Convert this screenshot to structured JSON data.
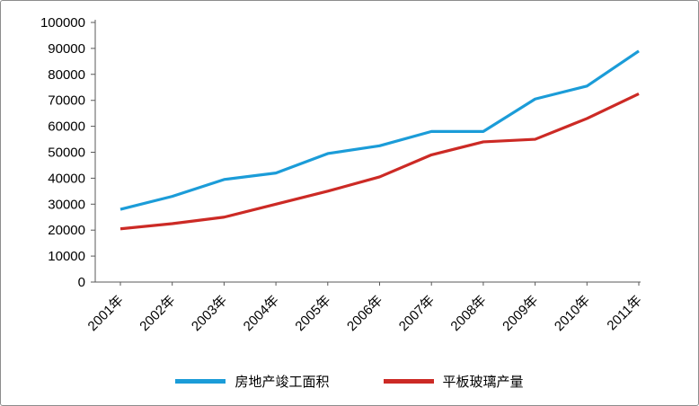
{
  "chart_data": {
    "type": "line",
    "categories": [
      "2001年",
      "2002年",
      "2003年",
      "2004年",
      "2005年",
      "2006年",
      "2007年",
      "2008年",
      "2009年",
      "2010年",
      "2011年"
    ],
    "series": [
      {
        "name": "房地产竣工面积",
        "color": "#1b9cd8",
        "values": [
          28000,
          33000,
          39500,
          42000,
          49500,
          52500,
          58000,
          58000,
          70500,
          75500,
          89000
        ]
      },
      {
        "name": "平板玻璃产量",
        "color": "#cc2a25",
        "values": [
          20500,
          22500,
          25000,
          30000,
          35000,
          40500,
          49000,
          54000,
          55000,
          63000,
          72500
        ]
      }
    ],
    "ylim": [
      0,
      100000
    ],
    "ytick_step": 10000,
    "yticks": [
      "0",
      "10000",
      "20000",
      "30000",
      "40000",
      "50000",
      "60000",
      "70000",
      "80000",
      "90000",
      "100000"
    ],
    "grid": false,
    "legend_position": "bottom"
  }
}
